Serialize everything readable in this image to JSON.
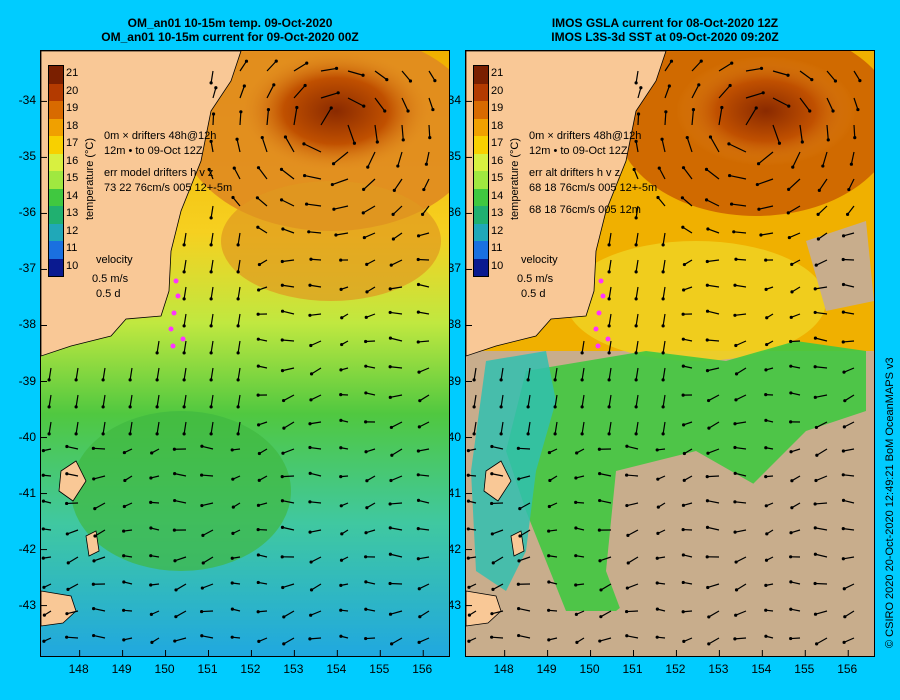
{
  "left": {
    "title_line1": "OM_an01 10-15m temp. 09-Oct-2020",
    "title_line2": "OM_an01 10-15m current for 09-Oct-2020 00Z",
    "legend_line1": "drifters 48h@12h",
    "legend_line2": "to 09-Oct 12Z",
    "legend_prefix1": "0m",
    "legend_prefix2": "12m",
    "err_line1": "err model drifters h v z",
    "err_line2": "73 22 76cm/s 005 12+-5m",
    "err_line3": ""
  },
  "right": {
    "title_line1": "IMOS GSLA current for 08-Oct-2020 12Z",
    "title_line2": "IMOS L3S-3d SST at 09-Oct-2020 09:20Z",
    "legend_line1": "drifters 48h@12h",
    "legend_line2": "to 09-Oct 12Z",
    "legend_prefix1": "0m",
    "legend_prefix2": "12m",
    "err_line1": "err alt drifters h v z",
    "err_line2": "68 18 76cm/s 005 12+-5m",
    "err_line3": "68 18 76cm/s 005 12m"
  },
  "colorbar": {
    "label": "temperature (°C)",
    "ticks": [
      "21",
      "20",
      "19",
      "18",
      "17",
      "16",
      "15",
      "14",
      "13",
      "12",
      "11",
      "10"
    ],
    "colors": [
      "#7a1f00",
      "#b33a00",
      "#d86a00",
      "#f0a000",
      "#f8d000",
      "#d8f040",
      "#a0e840",
      "#40c840",
      "#20b070",
      "#20a8b8",
      "#1a70e0",
      "#0a1a90"
    ]
  },
  "velocity": {
    "title": "velocity",
    "scale": "0.5 m/s",
    "time": "0.5 d"
  },
  "y_ticks": [
    "-34",
    "-35",
    "-36",
    "-37",
    "-38",
    "-39",
    "-40",
    "-41",
    "-42",
    "-43"
  ],
  "x_ticks": [
    "148",
    "149",
    "150",
    "151",
    "152",
    "153",
    "154",
    "155",
    "156"
  ],
  "credit": "© CSIRO 2020   20-Oct-2020 12:49:21 BoM OceanMAPS v3",
  "colors": {
    "land": "#f9c896",
    "background": "#00ccff",
    "nodata": "#c8ad8c",
    "drifter": "#ff33ff"
  },
  "map_extent": {
    "lon": [
      147.1,
      156.6
    ],
    "lat": [
      -43.9,
      -33.1
    ]
  }
}
